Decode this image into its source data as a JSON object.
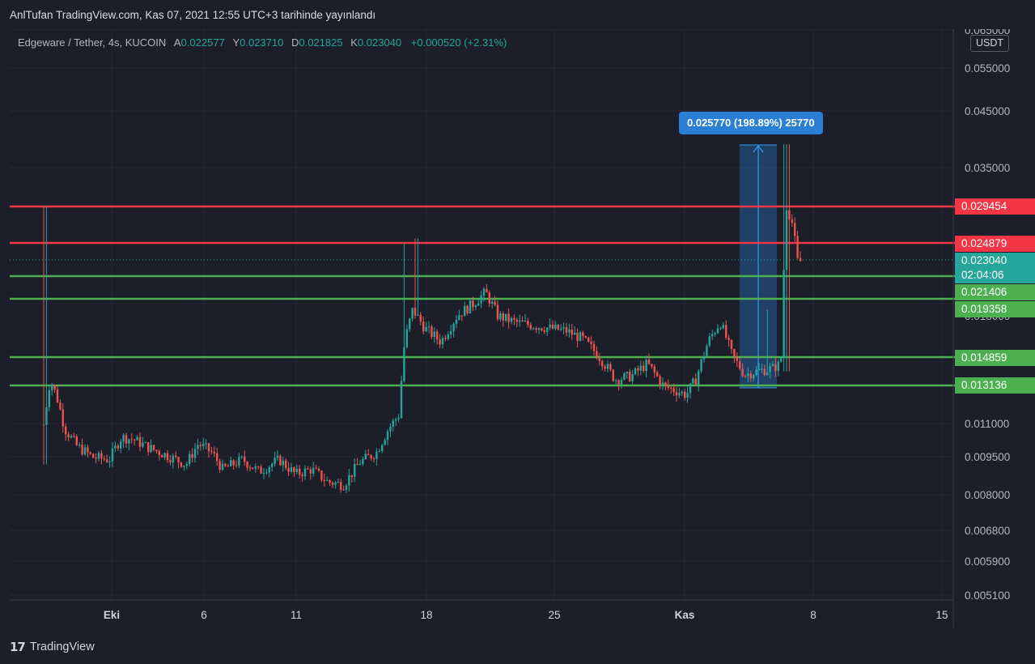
{
  "header": {
    "publisher": "AnlTufan TradingView.com, Kas 07, 2021 12:55 UTC+3 tarihinde yayınlandı"
  },
  "legend": {
    "symbol": "Edgeware / Tether, 4s, KUCOIN",
    "open_label": "A",
    "open": "0.022577",
    "high_label": "Y",
    "high": "0.023710",
    "low_label": "D",
    "low": "0.021825",
    "close_label": "K",
    "close": "0.023040",
    "change": "+0.000520 (+2.31%)"
  },
  "price_axis": {
    "currency": "USDT",
    "ticks": [
      "0.065000",
      "0.055000",
      "0.045000",
      "0.035000",
      "0.011000",
      "0.009500",
      "0.008000",
      "0.006800",
      "0.005900",
      "0.005100"
    ],
    "partial_tick": "0.018000"
  },
  "time_axis": {
    "ticks": [
      "Eki",
      "6",
      "11",
      "18",
      "25",
      "Kas",
      "8",
      "15"
    ]
  },
  "levels": {
    "resistance": [
      {
        "price": 0.029454,
        "label": "0.029454",
        "color": "#f23645"
      },
      {
        "price": 0.024879,
        "label": "0.024879",
        "color": "#f23645"
      }
    ],
    "support": [
      {
        "price": 0.021406,
        "label": "0.021406",
        "color": "#4caf50"
      },
      {
        "price": 0.019358,
        "label": "0.019358",
        "color": "#4caf50"
      },
      {
        "price": 0.014859,
        "label": "0.014859",
        "color": "#4caf50"
      },
      {
        "price": 0.013136,
        "label": "0.013136",
        "color": "#4caf50"
      }
    ]
  },
  "last_price": {
    "label": "0.023040",
    "countdown": "02:04:06",
    "color": "#26a69a"
  },
  "measure": {
    "label": "0.025770 (198.89%) 25770"
  },
  "footer": {
    "brand": "TradingView"
  },
  "colors": {
    "up": "#26a69a",
    "down": "#ef5350",
    "background": "#1c1f2a",
    "grid": "#2a2e39"
  },
  "chart_data": {
    "type": "candlestick",
    "scale": "log",
    "ylim": [
      0.0051,
      0.065
    ],
    "timeframe": "4s",
    "series": [
      {
        "date": "Eki",
        "open": 0.0125,
        "high": 0.0295,
        "low": 0.0092,
        "close": 0.0135
      },
      {
        "date": "6",
        "open": 0.01,
        "high": 0.0115,
        "low": 0.0094,
        "close": 0.0103
      },
      {
        "date": "11",
        "open": 0.009,
        "high": 0.0099,
        "low": 0.0083,
        "close": 0.0088
      },
      {
        "date": "18",
        "open": 0.0118,
        "high": 0.025,
        "low": 0.0115,
        "close": 0.017
      },
      {
        "date": "25",
        "open": 0.017,
        "high": 0.021,
        "low": 0.0155,
        "close": 0.016
      },
      {
        "date": "Kas",
        "open": 0.014,
        "high": 0.019,
        "low": 0.0128,
        "close": 0.015
      },
      {
        "date": "Kas+5",
        "open": 0.0145,
        "high": 0.039,
        "low": 0.013,
        "close": 0.0294
      },
      {
        "date": "8",
        "open": 0.022577,
        "high": 0.02371,
        "low": 0.021825,
        "close": 0.02304
      }
    ]
  }
}
